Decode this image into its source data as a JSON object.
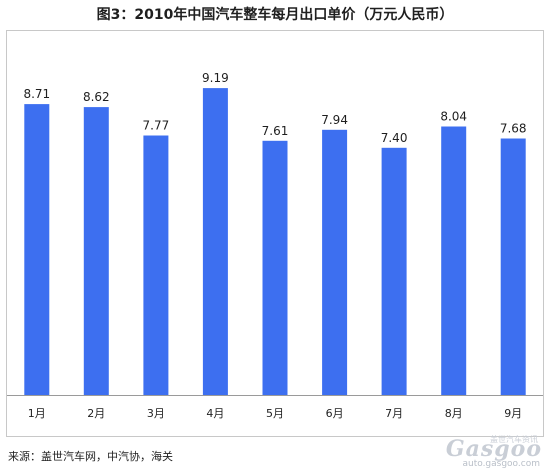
{
  "chart_data": {
    "type": "bar",
    "title": "图3：2010年中国汽车整车每月出口单价（万元人民币）",
    "categories": [
      "1月",
      "2月",
      "3月",
      "4月",
      "5月",
      "6月",
      "7月",
      "8月",
      "9月"
    ],
    "values": [
      8.71,
      8.62,
      7.77,
      9.19,
      7.61,
      7.94,
      7.4,
      8.04,
      7.68
    ],
    "data_labels": [
      "8.71",
      "8.62",
      "7.77",
      "9.19",
      "7.61",
      "7.94",
      "7.40",
      "8.04",
      "7.68"
    ],
    "ylim": [
      0,
      10
    ],
    "grid": false,
    "legend": "none",
    "bar_color": "#3d6ff0"
  },
  "source": "来源：盖世汽车网，中汽协，海关",
  "watermark": {
    "logo": "Gasgoo",
    "chinese": "盖世汽车资讯",
    "url": "auto.gasgoo.com"
  }
}
